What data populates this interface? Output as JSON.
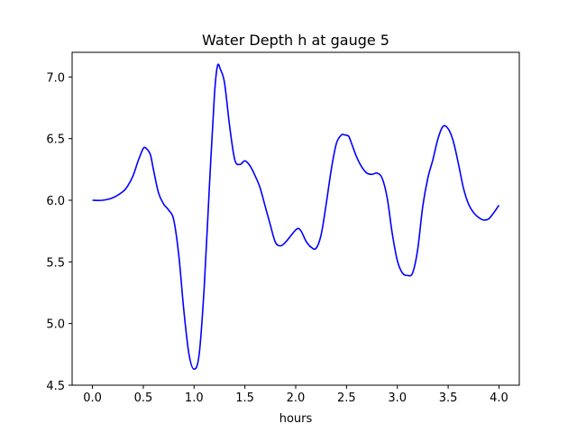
{
  "chart_data": {
    "type": "line",
    "title": "Water Depth h at gauge 5",
    "xlabel": "hours",
    "ylabel": "",
    "xlim": [
      -0.2,
      4.2
    ],
    "ylim": [
      4.5,
      7.2
    ],
    "xticks": [
      0.0,
      0.5,
      1.0,
      1.5,
      2.0,
      2.5,
      3.0,
      3.5,
      4.0
    ],
    "xtick_labels": [
      "0.0",
      "0.5",
      "1.0",
      "1.5",
      "2.0",
      "2.5",
      "3.0",
      "3.5",
      "4.0"
    ],
    "yticks": [
      4.5,
      5.0,
      5.5,
      6.0,
      6.5,
      7.0
    ],
    "ytick_labels": [
      "4.5",
      "5.0",
      "5.5",
      "6.0",
      "6.5",
      "7.0"
    ],
    "grid": false,
    "series": [
      {
        "color": "#0000ff",
        "x": [
          0.0,
          0.1,
          0.2,
          0.3,
          0.35,
          0.4,
          0.45,
          0.5,
          0.53,
          0.57,
          0.6,
          0.65,
          0.7,
          0.75,
          0.8,
          0.85,
          0.9,
          0.95,
          1.0,
          1.05,
          1.1,
          1.15,
          1.2,
          1.23,
          1.26,
          1.3,
          1.35,
          1.4,
          1.45,
          1.5,
          1.55,
          1.6,
          1.65,
          1.7,
          1.75,
          1.8,
          1.85,
          1.9,
          1.95,
          2.0,
          2.03,
          2.06,
          2.1,
          2.15,
          2.2,
          2.25,
          2.3,
          2.35,
          2.4,
          2.45,
          2.48,
          2.52,
          2.55,
          2.6,
          2.65,
          2.7,
          2.75,
          2.8,
          2.85,
          2.9,
          2.95,
          3.0,
          3.05,
          3.1,
          3.15,
          3.2,
          3.25,
          3.3,
          3.35,
          3.4,
          3.45,
          3.5,
          3.55,
          3.6,
          3.65,
          3.7,
          3.75,
          3.8,
          3.85,
          3.9,
          3.95,
          4.0
        ],
        "y": [
          6.0,
          6.0,
          6.02,
          6.07,
          6.12,
          6.2,
          6.32,
          6.42,
          6.42,
          6.37,
          6.25,
          6.06,
          5.97,
          5.92,
          5.84,
          5.55,
          5.1,
          4.75,
          4.63,
          4.75,
          5.3,
          6.1,
          6.85,
          7.09,
          7.06,
          6.95,
          6.6,
          6.33,
          6.29,
          6.32,
          6.28,
          6.2,
          6.1,
          5.95,
          5.8,
          5.66,
          5.63,
          5.66,
          5.71,
          5.76,
          5.77,
          5.74,
          5.67,
          5.62,
          5.61,
          5.72,
          5.97,
          6.25,
          6.46,
          6.53,
          6.53,
          6.52,
          6.46,
          6.35,
          6.27,
          6.22,
          6.21,
          6.22,
          6.18,
          6.02,
          5.73,
          5.51,
          5.41,
          5.39,
          5.41,
          5.6,
          5.95,
          6.18,
          6.33,
          6.5,
          6.6,
          6.58,
          6.48,
          6.3,
          6.1,
          5.97,
          5.9,
          5.86,
          5.84,
          5.85,
          5.9,
          5.96
        ]
      }
    ]
  }
}
